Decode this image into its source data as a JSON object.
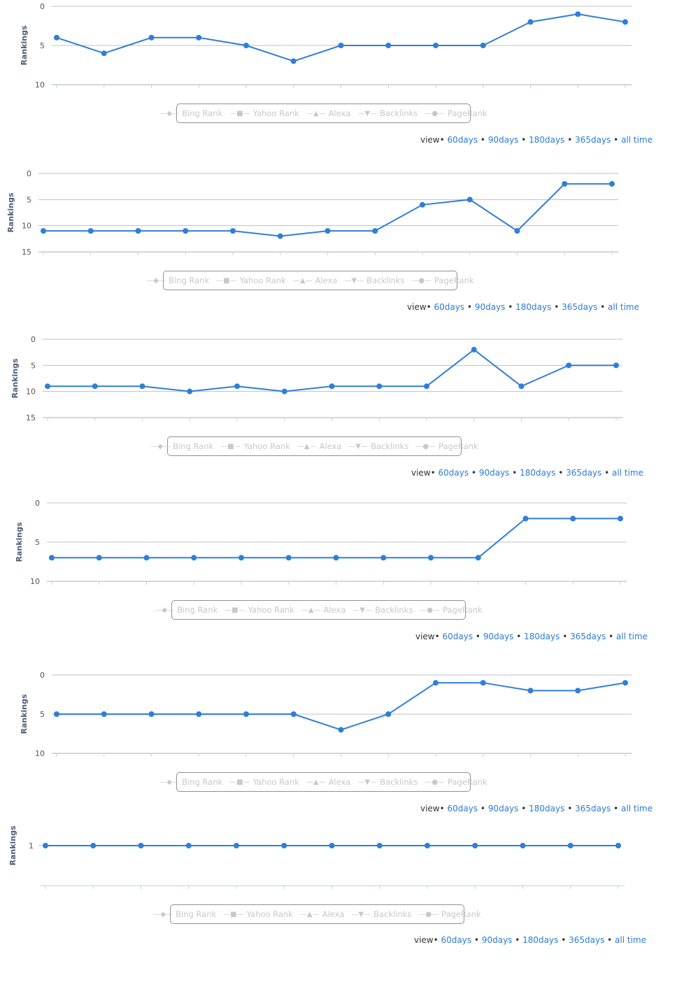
{
  "colors": {
    "series": "#2f7ed8",
    "grid": "#c0c0c0",
    "axis": "#c0d0e0",
    "legend_text": "#c8c8c8",
    "link": "#2b7bd6"
  },
  "legend": [
    {
      "label": "Bing Rank",
      "icon": "diamond-line-icon",
      "glyph": "◆"
    },
    {
      "label": "Yahoo Rank",
      "icon": "square-line-icon",
      "glyph": "■"
    },
    {
      "label": "Alexa",
      "icon": "triangle-line-icon",
      "glyph": "▲"
    },
    {
      "label": "Backlinks",
      "icon": "triangle-down-line-icon",
      "glyph": "▼"
    },
    {
      "label": "PageRank",
      "icon": "circle-line-icon",
      "glyph": "●"
    }
  ],
  "views": {
    "prefix": "view• ",
    "sep": " • ",
    "links": [
      "60days",
      "90days",
      "180days",
      "365days",
      "all time"
    ]
  },
  "chart_data": [
    {
      "type": "line",
      "ylabel": "Rankings",
      "ylim": [
        0,
        10
      ],
      "yticks": [
        0,
        5,
        10
      ],
      "reversed": true,
      "values": [
        4,
        6,
        4,
        4,
        5,
        7,
        5,
        5,
        5,
        5,
        2,
        1,
        2
      ]
    },
    {
      "type": "line",
      "ylabel": "Rankings",
      "ylim": [
        0,
        15
      ],
      "yticks": [
        0,
        5,
        10,
        15
      ],
      "reversed": true,
      "values": [
        11,
        11,
        11,
        11,
        11,
        12,
        11,
        11,
        6,
        5,
        11,
        2,
        2
      ]
    },
    {
      "type": "line",
      "ylabel": "Rankings",
      "ylim": [
        0,
        15
      ],
      "yticks": [
        0,
        5,
        10,
        15
      ],
      "reversed": true,
      "values": [
        9,
        9,
        9,
        10,
        9,
        10,
        9,
        9,
        9,
        2,
        9,
        5,
        5
      ]
    },
    {
      "type": "line",
      "ylabel": "Rankings",
      "ylim": [
        0,
        10
      ],
      "yticks": [
        0,
        5,
        10
      ],
      "reversed": true,
      "values": [
        7,
        7,
        7,
        7,
        7,
        7,
        7,
        7,
        7,
        7,
        2,
        2,
        2
      ]
    },
    {
      "type": "line",
      "ylabel": "Rankings",
      "ylim": [
        0,
        10
      ],
      "yticks": [
        0,
        5,
        10
      ],
      "reversed": true,
      "values": [
        5,
        5,
        5,
        5,
        5,
        5,
        7,
        5,
        1,
        1,
        2,
        2,
        1
      ]
    },
    {
      "type": "line",
      "ylabel": "Rankings",
      "ylim": [
        0,
        2
      ],
      "yticks": [
        1
      ],
      "reversed": true,
      "values": [
        1,
        1,
        1,
        1,
        1,
        1,
        1,
        1,
        1,
        1,
        1,
        1,
        1
      ]
    }
  ]
}
